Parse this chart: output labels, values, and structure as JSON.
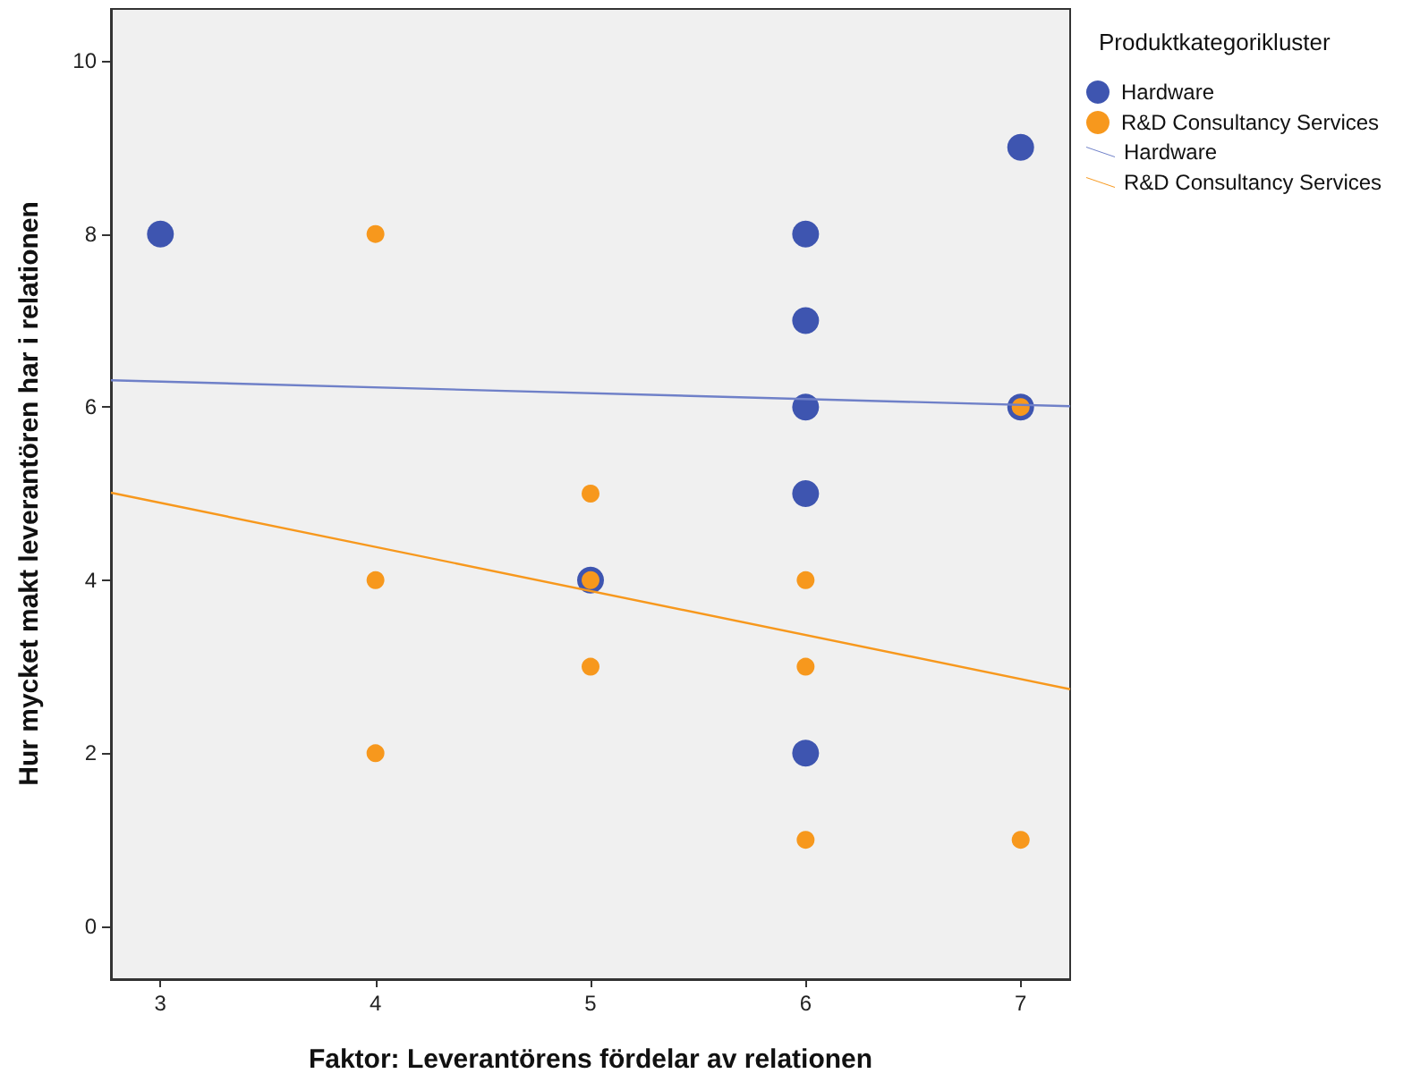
{
  "chart_data": {
    "type": "scatter",
    "xlabel": "Faktor: Leverantörens fördelar av relationen",
    "ylabel": "Hur mycket makt leverantören har i relationen",
    "legend_title": "Produktkategorikluster",
    "legend": "top right",
    "grid": false,
    "marker": "circle",
    "xlim": [
      2.77,
      7.23
    ],
    "xticks": [
      3,
      4,
      5,
      6,
      7
    ],
    "ylim": [
      -0.6,
      10.6
    ],
    "yticks": [
      0,
      2,
      4,
      6,
      8,
      10
    ],
    "series": [
      {
        "name": "Hardware",
        "color": "#3e55b0",
        "x": [
          3,
          5,
          6,
          6,
          6,
          6,
          6,
          7,
          7
        ],
        "values": [
          8,
          4,
          8,
          7,
          6,
          5,
          2,
          9,
          6
        ]
      },
      {
        "name": "R&D Consultancy Services",
        "color": "#f7981d",
        "x": [
          4,
          4,
          4,
          5,
          5,
          5,
          6,
          6,
          6,
          7,
          7
        ],
        "values": [
          8,
          4,
          2,
          5,
          4,
          3,
          4,
          3,
          1,
          6,
          1
        ]
      },
      {
        "name": "Hardware",
        "type": "line",
        "marker": "none",
        "color": "#6f80c8",
        "x": [
          2.77,
          7.23
        ],
        "values": [
          6.31,
          6.01
        ]
      },
      {
        "name": "R&D Consultancy Services",
        "type": "line",
        "marker": "none",
        "color": "#f7981d",
        "x": [
          2.77,
          7.23
        ],
        "values": [
          5.01,
          2.74
        ]
      }
    ]
  }
}
